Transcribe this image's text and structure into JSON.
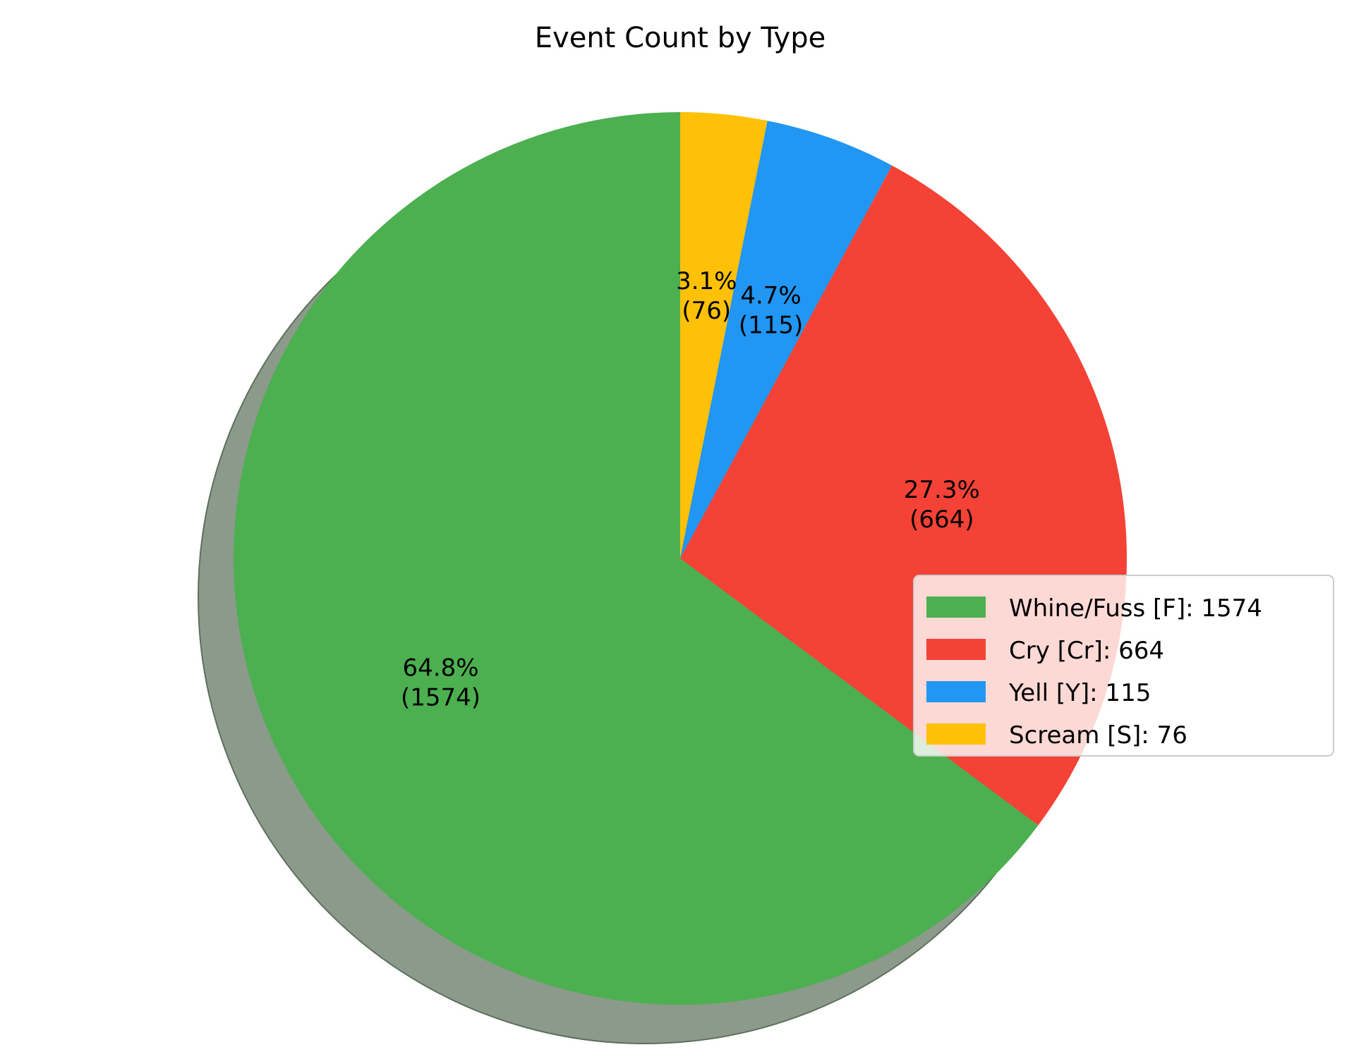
{
  "chart_data": {
    "type": "pie",
    "title": "Event Count by Type",
    "slices": [
      {
        "name": "Scream [S]",
        "value": 76,
        "label_pct": "3.1%",
        "label_count": "(76)",
        "legend": "Scream [S]: 76",
        "color": "#FFC107"
      },
      {
        "name": "Yell [Y]",
        "value": 115,
        "label_pct": "4.7%",
        "label_count": "(115)",
        "legend": "Yell [Y]: 115",
        "color": "#2196F3"
      },
      {
        "name": "Cry [Cr]",
        "value": 664,
        "label_pct": "27.3%",
        "label_count": "(664)",
        "legend": "Cry [Cr]: 664",
        "color": "#F44336"
      },
      {
        "name": "Whine/Fuss [F]",
        "value": 1574,
        "label_pct": "64.8%",
        "label_count": "(1574)",
        "legend": "Whine/Fuss [F]: 1574",
        "color": "#4CAF50"
      }
    ],
    "legend_order": [
      "Whine/Fuss [F]",
      "Cry [Cr]",
      "Yell [Y]",
      "Scream [S]"
    ],
    "legend_placement": "center-right",
    "start_angle_deg": 90,
    "direction": "clockwise",
    "shadow": true,
    "shadow_color": "#8C9A8C"
  }
}
